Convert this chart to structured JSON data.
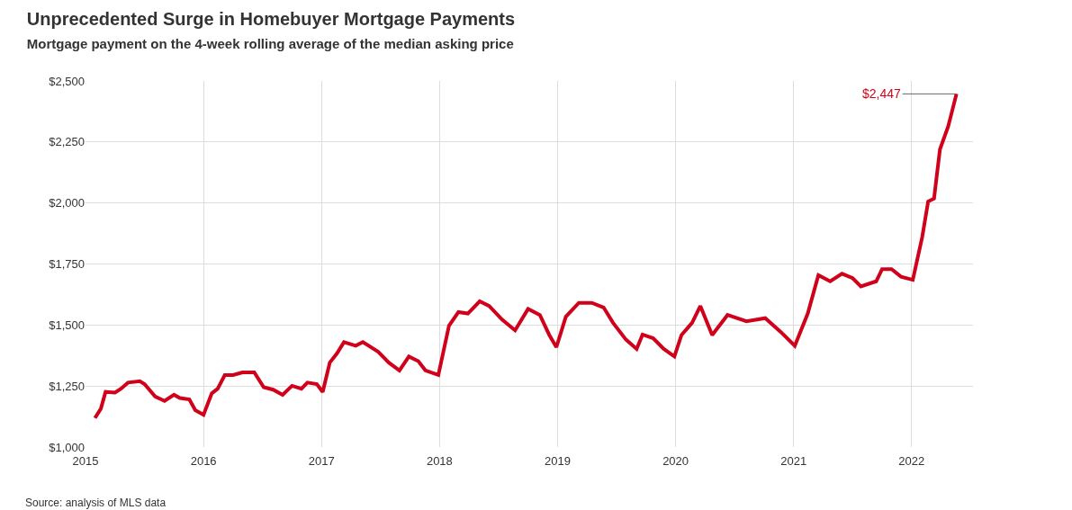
{
  "chart_data": {
    "type": "line",
    "title": "Unprecedented Surge in Homebuyer Mortgage Payments",
    "subtitle": "Mortgage payment on the 4-week rolling average of the median asking price",
    "x": [
      2015.08,
      2015.13,
      2015.17,
      2015.25,
      2015.3,
      2015.36,
      2015.46,
      2015.5,
      2015.59,
      2015.67,
      2015.75,
      2015.8,
      2015.88,
      2015.93,
      2016.0,
      2016.07,
      2016.12,
      2016.18,
      2016.25,
      2016.33,
      2016.43,
      2016.51,
      2016.59,
      2016.67,
      2016.75,
      2016.83,
      2016.88,
      2016.96,
      2017.01,
      2017.07,
      2017.13,
      2017.19,
      2017.29,
      2017.35,
      2017.48,
      2017.57,
      2017.66,
      2017.74,
      2017.82,
      2017.88,
      2017.99,
      2018.08,
      2018.16,
      2018.24,
      2018.34,
      2018.42,
      2018.53,
      2018.64,
      2018.75,
      2018.85,
      2018.93,
      2018.99,
      2019.07,
      2019.18,
      2019.29,
      2019.39,
      2019.47,
      2019.58,
      2019.67,
      2019.72,
      2019.81,
      2019.9,
      2019.99,
      2020.05,
      2020.14,
      2020.21,
      2020.31,
      2020.44,
      2020.6,
      2020.76,
      2020.89,
      2021.01,
      2021.12,
      2021.21,
      2021.31,
      2021.41,
      2021.5,
      2021.57,
      2021.7,
      2021.75,
      2021.83,
      2021.91,
      2022.01,
      2022.09,
      2022.14,
      2022.19,
      2022.24,
      2022.31,
      2022.38
    ],
    "series": [
      {
        "color": "#d0021b",
        "values": [
          1119,
          1157,
          1226,
          1223,
          1239,
          1264,
          1270,
          1258,
          1207,
          1189,
          1214,
          1201,
          1195,
          1151,
          1132,
          1220,
          1239,
          1295,
          1295,
          1306,
          1306,
          1245,
          1235,
          1214,
          1251,
          1239,
          1264,
          1258,
          1226,
          1346,
          1383,
          1430,
          1415,
          1430,
          1390,
          1346,
          1314,
          1371,
          1352,
          1314,
          1295,
          1497,
          1553,
          1547,
          1597,
          1578,
          1522,
          1478,
          1566,
          1541,
          1459,
          1409,
          1534,
          1591,
          1591,
          1572,
          1509,
          1440,
          1402,
          1461,
          1446,
          1402,
          1371,
          1459,
          1509,
          1578,
          1459,
          1541,
          1515,
          1528,
          1472,
          1415,
          1547,
          1704,
          1679,
          1710,
          1692,
          1658,
          1679,
          1729,
          1729,
          1698,
          1685,
          1861,
          2006,
          2018,
          2220,
          2314,
          2447
        ]
      }
    ],
    "xlim": [
      2015,
      2022.52
    ],
    "xticks": [
      2015,
      2016,
      2017,
      2018,
      2019,
      2020,
      2021,
      2022
    ],
    "ylim": [
      1000,
      2500
    ],
    "yticks": [
      {
        "value": 1000,
        "label": "$1,000"
      },
      {
        "value": 1250,
        "label": "$1,250"
      },
      {
        "value": 1500,
        "label": "$1,500"
      },
      {
        "value": 1750,
        "label": "$1,750"
      },
      {
        "value": 2000,
        "label": "$2,000"
      },
      {
        "value": 2250,
        "label": "$2,250"
      },
      {
        "value": 2500,
        "label": "$2,500"
      }
    ],
    "grid": true,
    "marker": "none",
    "line_style": "solid",
    "annotations": [
      {
        "text": "$2,447",
        "x": 2022.38,
        "y": 2447
      },
      "Source: analysis of MLS data"
    ]
  }
}
